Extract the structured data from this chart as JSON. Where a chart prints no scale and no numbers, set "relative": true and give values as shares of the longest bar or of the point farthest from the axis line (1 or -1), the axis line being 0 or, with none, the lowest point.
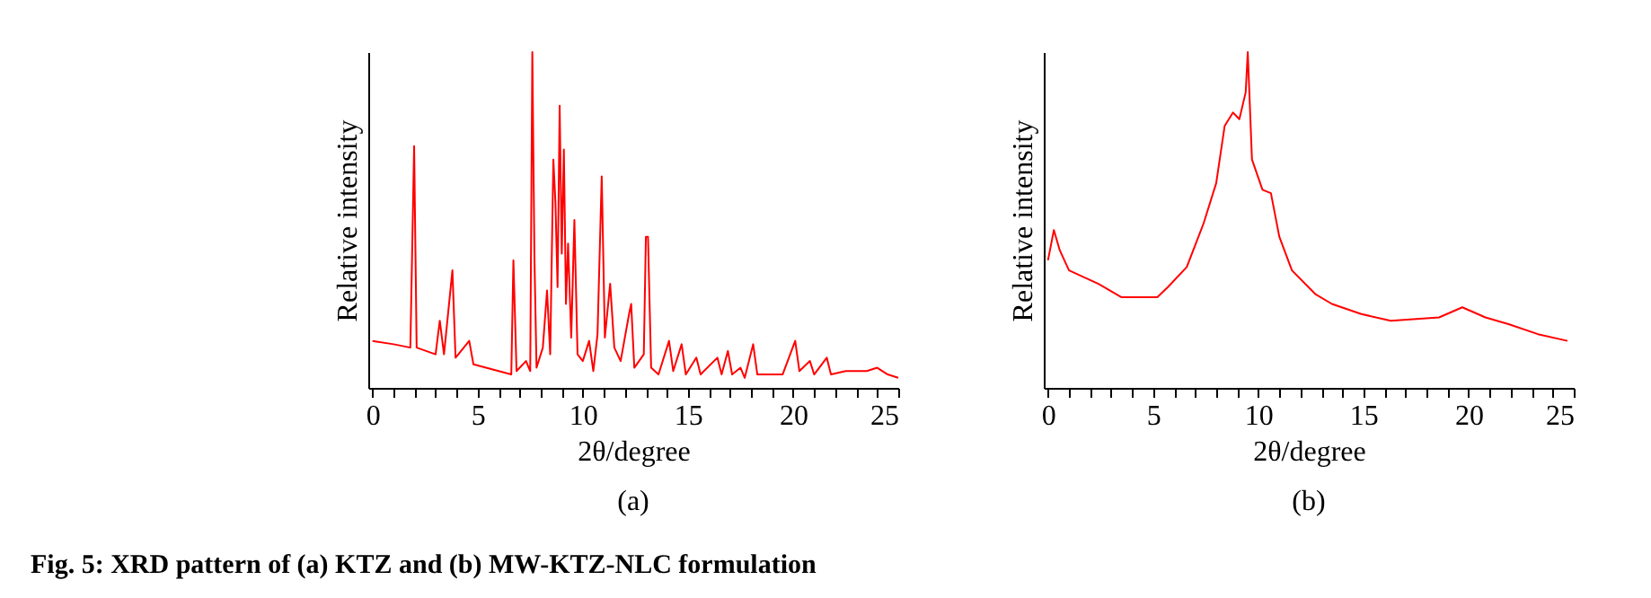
{
  "chart_data": [
    {
      "type": "line",
      "relative": true,
      "xlabel": "2θ/degree",
      "ylabel": "Relative intensity",
      "xlim": [
        -0.2,
        25
      ],
      "xticks": [
        0,
        {
          "value": 1,
          "label": null
        },
        {
          "value": 2,
          "label": null
        },
        {
          "value": 3,
          "label": null
        },
        {
          "value": 4,
          "label": null
        },
        5,
        {
          "value": 6,
          "label": null
        },
        {
          "value": 7,
          "label": null
        },
        {
          "value": 8,
          "label": null
        },
        {
          "value": 9,
          "label": null
        },
        10,
        {
          "value": 11,
          "label": null
        },
        {
          "value": 12,
          "label": null
        },
        {
          "value": 13,
          "label": null
        },
        {
          "value": 14,
          "label": null
        },
        15,
        {
          "value": 16,
          "label": null
        },
        {
          "value": 17,
          "label": null
        },
        {
          "value": 18,
          "label": null
        },
        {
          "value": 19,
          "label": null
        },
        20,
        {
          "value": 21,
          "label": null
        },
        {
          "value": 22,
          "label": null
        },
        {
          "value": 23,
          "label": null
        },
        {
          "value": 24,
          "label": null
        },
        25
      ],
      "annotations": [
        "(a)",
        "Fig. 5: XRD pattern of (a) KTZ and (b) MW-KTZ-NLC formulation"
      ],
      "series": [
        {
          "color": "#ff0000",
          "x": [
            0,
            1,
            1.8,
            1.98,
            2.1,
            3.0,
            3.2,
            3.4,
            3.8,
            3.95,
            4.6,
            4.8,
            6.0,
            6.6,
            6.7,
            6.85,
            7.3,
            7.5,
            7.6,
            7.7,
            7.8,
            8.1,
            8.3,
            8.45,
            8.6,
            8.7,
            8.8,
            8.9,
            9.0,
            9.1,
            9.2,
            9.3,
            9.45,
            9.6,
            9.75,
            10.0,
            10.3,
            10.5,
            10.7,
            10.9,
            11.05,
            11.3,
            11.5,
            11.8,
            12.2,
            12.3,
            12.45,
            12.9,
            13.0,
            13.1,
            13.25,
            13.6,
            14.1,
            14.3,
            14.7,
            14.9,
            15.4,
            15.6,
            16.4,
            16.6,
            16.9,
            17.1,
            17.5,
            17.7,
            18.1,
            18.3,
            19.5,
            20.1,
            20.3,
            20.8,
            21.0,
            21.6,
            21.8,
            22.5,
            23.5,
            24.0,
            24.5,
            25.0
          ],
          "values": [
            0.14,
            0.13,
            0.12,
            0.72,
            0.12,
            0.1,
            0.2,
            0.1,
            0.35,
            0.09,
            0.14,
            0.07,
            0.05,
            0.04,
            0.38,
            0.05,
            0.08,
            0.05,
            1.0,
            0.39,
            0.06,
            0.12,
            0.29,
            0.1,
            0.68,
            0.55,
            0.3,
            0.84,
            0.4,
            0.71,
            0.25,
            0.43,
            0.15,
            0.5,
            0.1,
            0.08,
            0.14,
            0.05,
            0.16,
            0.63,
            0.15,
            0.31,
            0.12,
            0.08,
            0.22,
            0.25,
            0.06,
            0.1,
            0.45,
            0.45,
            0.06,
            0.04,
            0.14,
            0.05,
            0.13,
            0.04,
            0.09,
            0.04,
            0.09,
            0.04,
            0.11,
            0.04,
            0.06,
            0.03,
            0.13,
            0.04,
            0.04,
            0.14,
            0.05,
            0.08,
            0.04,
            0.09,
            0.04,
            0.05,
            0.05,
            0.06,
            0.04,
            0.03
          ]
        }
      ]
    },
    {
      "type": "line",
      "relative": true,
      "xlabel": "2θ/degree",
      "ylabel": "Relative intensity",
      "xlim": [
        -0.2,
        25
      ],
      "xticks": [
        0,
        {
          "value": 1,
          "label": null
        },
        {
          "value": 2,
          "label": null
        },
        {
          "value": 3,
          "label": null
        },
        {
          "value": 4,
          "label": null
        },
        5,
        {
          "value": 6,
          "label": null
        },
        {
          "value": 7,
          "label": null
        },
        {
          "value": 8,
          "label": null
        },
        {
          "value": 9,
          "label": null
        },
        10,
        {
          "value": 11,
          "label": null
        },
        {
          "value": 12,
          "label": null
        },
        {
          "value": 13,
          "label": null
        },
        {
          "value": 14,
          "label": null
        },
        15,
        {
          "value": 16,
          "label": null
        },
        {
          "value": 17,
          "label": null
        },
        {
          "value": 18,
          "label": null
        },
        {
          "value": 19,
          "label": null
        },
        20,
        {
          "value": 21,
          "label": null
        },
        {
          "value": 22,
          "label": null
        },
        {
          "value": 23,
          "label": null
        },
        {
          "value": 24,
          "label": null
        },
        25
      ],
      "annotations": [
        "(b)"
      ],
      "series": [
        {
          "color": "#ff0000",
          "x": [
            0,
            0.28,
            0.56,
            1.0,
            2.4,
            3.5,
            5.2,
            5.7,
            6.6,
            7.4,
            8.0,
            8.4,
            8.8,
            9.1,
            9.4,
            9.5,
            9.7,
            10.2,
            10.6,
            11.0,
            11.6,
            12.7,
            13.5,
            14.9,
            16.3,
            18.6,
            19.7,
            20.8,
            21.9,
            23.3,
            24.7
          ],
          "values": [
            0.38,
            0.47,
            0.41,
            0.35,
            0.31,
            0.27,
            0.27,
            0.3,
            0.36,
            0.49,
            0.61,
            0.78,
            0.82,
            0.8,
            0.88,
            1.0,
            0.68,
            0.59,
            0.58,
            0.45,
            0.35,
            0.28,
            0.25,
            0.22,
            0.2,
            0.21,
            0.24,
            0.21,
            0.19,
            0.16,
            0.14
          ]
        }
      ]
    }
  ]
}
